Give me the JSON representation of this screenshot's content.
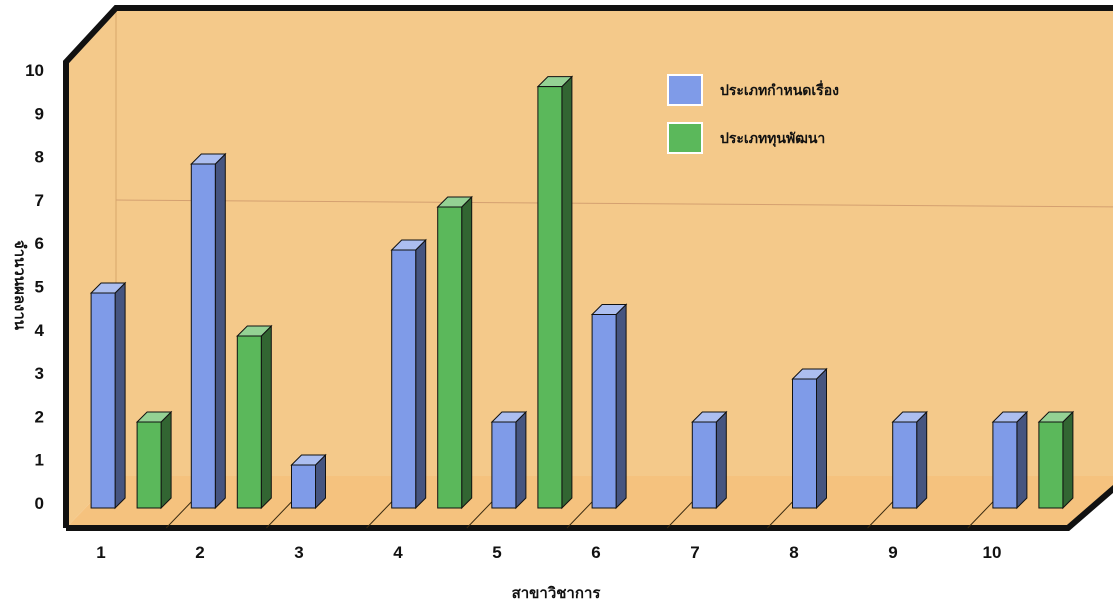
{
  "chart_data": {
    "type": "bar",
    "title": "",
    "xlabel": "สาขาวิชาการ",
    "ylabel": "จำนวนผลงาน",
    "categories": [
      "1",
      "2",
      "3",
      "4",
      "5",
      "6",
      "7",
      "8",
      "9",
      "10"
    ],
    "yticks": [
      "0",
      "1",
      "2",
      "3",
      "4",
      "5",
      "6",
      "7",
      "8",
      "9",
      "10"
    ],
    "ylim": [
      0,
      10
    ],
    "grid": false,
    "legend_position": "top-right",
    "three_d": true,
    "series": [
      {
        "name": "ประเภทกำหนดเรื่อง",
        "color": "#7f9be8",
        "values": [
          5,
          8,
          1,
          6,
          2,
          4.5,
          2,
          3,
          2,
          2
        ]
      },
      {
        "name": "ประเภททุนพัฒนา",
        "color": "#5bb85b",
        "values": [
          2,
          4,
          0,
          7,
          9.8,
          0,
          0,
          0,
          0,
          2
        ]
      }
    ],
    "colors": {
      "back_wall": "#f4c98a",
      "floor": "#f5c27e",
      "frame": "#111111"
    }
  }
}
